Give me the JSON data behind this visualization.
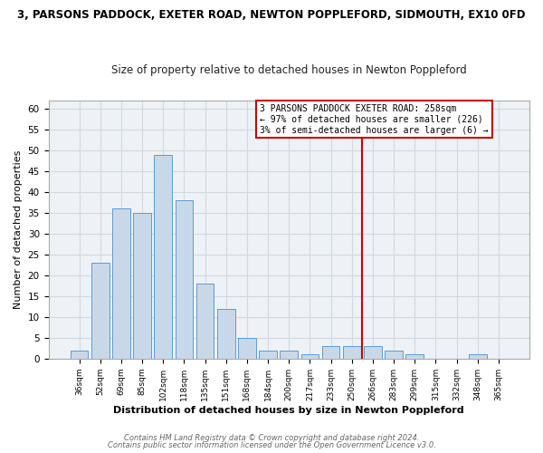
{
  "title_top": "3, PARSONS PADDOCK, EXETER ROAD, NEWTON POPPLEFORD, SIDMOUTH, EX10 0FD",
  "title_sub": "Size of property relative to detached houses in Newton Poppleford",
  "xlabel": "Distribution of detached houses by size in Newton Poppleford",
  "ylabel": "Number of detached properties",
  "footer1": "Contains HM Land Registry data © Crown copyright and database right 2024.",
  "footer2": "Contains public sector information licensed under the Open Government Licence v3.0.",
  "bin_labels": [
    "36sqm",
    "52sqm",
    "69sqm",
    "85sqm",
    "102sqm",
    "118sqm",
    "135sqm",
    "151sqm",
    "168sqm",
    "184sqm",
    "200sqm",
    "217sqm",
    "233sqm",
    "250sqm",
    "266sqm",
    "283sqm",
    "299sqm",
    "315sqm",
    "332sqm",
    "348sqm",
    "365sqm"
  ],
  "bar_heights": [
    2,
    23,
    36,
    35,
    49,
    38,
    18,
    12,
    5,
    2,
    2,
    1,
    3,
    3,
    3,
    2,
    1,
    0,
    0,
    1,
    0
  ],
  "bar_color": "#c8d8e8",
  "bar_edge_color": "#5b9bd5",
  "ylim": [
    0,
    62
  ],
  "yticks": [
    0,
    5,
    10,
    15,
    20,
    25,
    30,
    35,
    40,
    45,
    50,
    55,
    60
  ],
  "legend_title": "3 PARSONS PADDOCK EXETER ROAD: 258sqm",
  "legend_line1": "← 97% of detached houses are smaller (226)",
  "legend_line2": "3% of semi-detached houses are larger (6) →",
  "line_color": "#cc0000",
  "grid_color": "#d0d8e0",
  "background_color": "#ffffff",
  "axes_background": "#eef2f6"
}
